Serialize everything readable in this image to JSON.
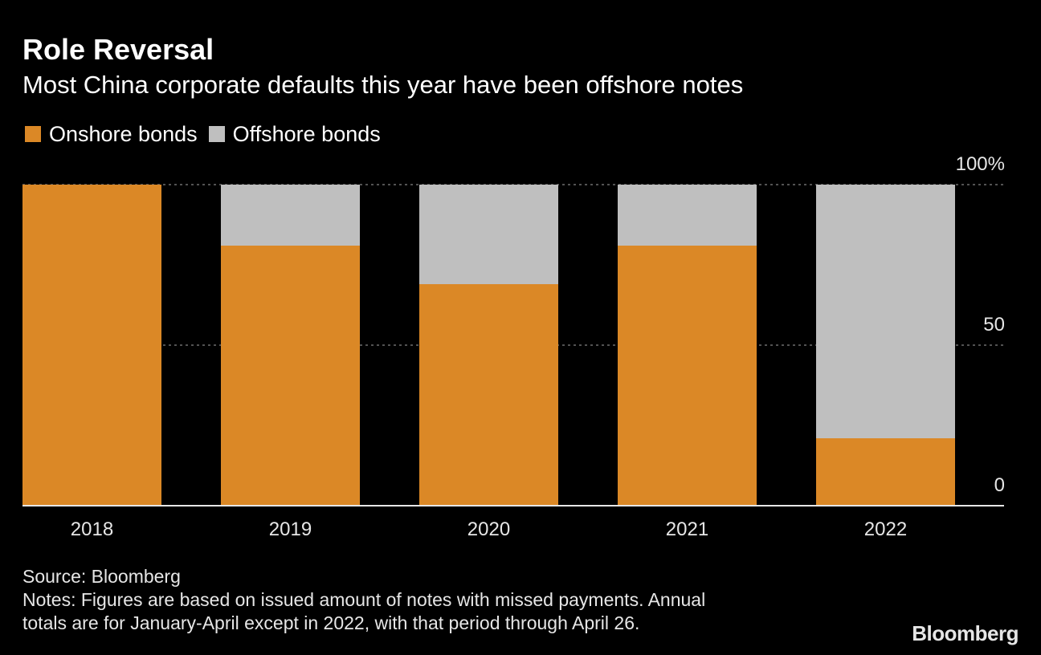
{
  "chart_data": {
    "type": "bar",
    "stacked": true,
    "title": "Role Reversal",
    "subtitle": "Most China corporate defaults this year have been offshore notes",
    "categories": [
      "2018",
      "2019",
      "2020",
      "2021",
      "2022"
    ],
    "series": [
      {
        "name": "Onshore bonds",
        "color": "#db8826",
        "values": [
          100,
          81,
          69,
          81,
          21
        ]
      },
      {
        "name": "Offshore bonds",
        "color": "#bfbfbf",
        "values": [
          0,
          19,
          31,
          19,
          79
        ]
      }
    ],
    "ylim": [
      0,
      100
    ],
    "yticks": [
      {
        "value": 0,
        "label": "0"
      },
      {
        "value": 50,
        "label": "50"
      },
      {
        "value": 100,
        "label": "100%"
      }
    ],
    "xlabel": "",
    "ylabel": "",
    "grid": true,
    "legend_position": "top-left"
  },
  "footer": {
    "source": "Source: Bloomberg",
    "notes_line1": "Notes: Figures are based on issued amount of notes with missed payments. Annual",
    "notes_line2": "totals are for January-April except in 2022, with that period through April 26."
  },
  "brand": "Bloomberg"
}
